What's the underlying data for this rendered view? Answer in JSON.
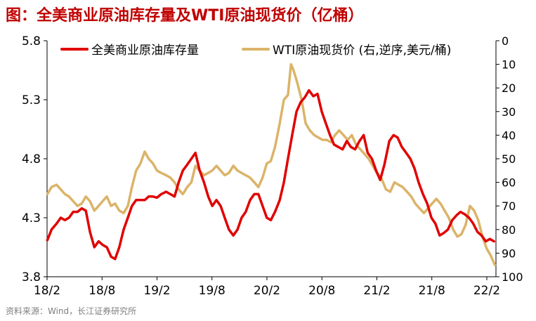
{
  "title": "图：全美商业原油库存量及WTI原油现货价（亿桶）",
  "source": "资料来源：Wind，长江证券研究所",
  "chart_data": {
    "type": "line",
    "x_ticks": [
      "18/2",
      "18/8",
      "19/2",
      "19/8",
      "20/2",
      "20/8",
      "21/2",
      "21/8",
      "22/2"
    ],
    "x_range": [
      "2018-02",
      "2022-03"
    ],
    "y_left": {
      "ticks": [
        "5.8",
        "5.3",
        "4.8",
        "4.3",
        "3.8"
      ],
      "range": [
        3.8,
        5.8
      ]
    },
    "y_right": {
      "ticks": [
        "0",
        "10",
        "20",
        "30",
        "40",
        "50",
        "60",
        "70",
        "80",
        "90",
        "100"
      ],
      "range": [
        0,
        100
      ],
      "inverted": true
    },
    "grid": false,
    "legend_position": "top",
    "series": [
      {
        "name": "全美商业原油库存量",
        "axis": "left",
        "color": "#e00000",
        "points": [
          [
            "2018-02-02",
            4.11
          ],
          [
            "2018-02-16",
            4.2
          ],
          [
            "2018-03-02",
            4.25
          ],
          [
            "2018-03-16",
            4.3
          ],
          [
            "2018-03-30",
            4.28
          ],
          [
            "2018-04-13",
            4.3
          ],
          [
            "2018-04-27",
            4.35
          ],
          [
            "2018-05-11",
            4.35
          ],
          [
            "2018-05-25",
            4.38
          ],
          [
            "2018-06-08",
            4.36
          ],
          [
            "2018-06-22",
            4.18
          ],
          [
            "2018-07-06",
            4.05
          ],
          [
            "2018-07-20",
            4.1
          ],
          [
            "2018-08-03",
            4.07
          ],
          [
            "2018-08-17",
            4.05
          ],
          [
            "2018-08-31",
            3.97
          ],
          [
            "2018-09-14",
            3.95
          ],
          [
            "2018-09-28",
            4.05
          ],
          [
            "2018-10-12",
            4.2
          ],
          [
            "2018-10-26",
            4.3
          ],
          [
            "2018-11-09",
            4.4
          ],
          [
            "2018-11-23",
            4.45
          ],
          [
            "2018-12-07",
            4.45
          ],
          [
            "2018-12-21",
            4.45
          ],
          [
            "2019-01-04",
            4.48
          ],
          [
            "2019-01-18",
            4.48
          ],
          [
            "2019-02-01",
            4.47
          ],
          [
            "2019-02-15",
            4.5
          ],
          [
            "2019-03-01",
            4.52
          ],
          [
            "2019-03-15",
            4.5
          ],
          [
            "2019-03-29",
            4.48
          ],
          [
            "2019-04-12",
            4.6
          ],
          [
            "2019-04-26",
            4.7
          ],
          [
            "2019-05-10",
            4.75
          ],
          [
            "2019-05-24",
            4.8
          ],
          [
            "2019-06-07",
            4.85
          ],
          [
            "2019-06-21",
            4.7
          ],
          [
            "2019-07-05",
            4.6
          ],
          [
            "2019-07-19",
            4.48
          ],
          [
            "2019-08-02",
            4.4
          ],
          [
            "2019-08-16",
            4.45
          ],
          [
            "2019-08-30",
            4.4
          ],
          [
            "2019-09-13",
            4.3
          ],
          [
            "2019-09-27",
            4.2
          ],
          [
            "2019-10-11",
            4.15
          ],
          [
            "2019-10-25",
            4.2
          ],
          [
            "2019-11-08",
            4.3
          ],
          [
            "2019-11-22",
            4.35
          ],
          [
            "2019-12-06",
            4.45
          ],
          [
            "2019-12-20",
            4.5
          ],
          [
            "2020-01-03",
            4.5
          ],
          [
            "2020-01-17",
            4.4
          ],
          [
            "2020-01-31",
            4.3
          ],
          [
            "2020-02-14",
            4.28
          ],
          [
            "2020-02-28",
            4.35
          ],
          [
            "2020-03-13",
            4.45
          ],
          [
            "2020-03-27",
            4.6
          ],
          [
            "2020-04-10",
            4.8
          ],
          [
            "2020-04-24",
            5.0
          ],
          [
            "2020-05-08",
            5.2
          ],
          [
            "2020-05-22",
            5.28
          ],
          [
            "2020-06-05",
            5.32
          ],
          [
            "2020-06-19",
            5.38
          ],
          [
            "2020-07-03",
            5.33
          ],
          [
            "2020-07-17",
            5.35
          ],
          [
            "2020-07-31",
            5.2
          ],
          [
            "2020-08-14",
            5.1
          ],
          [
            "2020-08-28",
            5.0
          ],
          [
            "2020-09-11",
            4.92
          ],
          [
            "2020-09-25",
            4.9
          ],
          [
            "2020-10-09",
            4.88
          ],
          [
            "2020-10-23",
            4.95
          ],
          [
            "2020-11-06",
            4.9
          ],
          [
            "2020-11-20",
            4.88
          ],
          [
            "2020-12-04",
            4.95
          ],
          [
            "2020-12-18",
            5.0
          ],
          [
            "2021-01-01",
            4.85
          ],
          [
            "2021-01-15",
            4.8
          ],
          [
            "2021-01-29",
            4.7
          ],
          [
            "2021-02-12",
            4.62
          ],
          [
            "2021-02-26",
            4.75
          ],
          [
            "2021-03-12",
            4.95
          ],
          [
            "2021-03-26",
            5.0
          ],
          [
            "2021-04-09",
            4.98
          ],
          [
            "2021-04-23",
            4.9
          ],
          [
            "2021-05-07",
            4.85
          ],
          [
            "2021-05-21",
            4.8
          ],
          [
            "2021-06-04",
            4.72
          ],
          [
            "2021-06-18",
            4.6
          ],
          [
            "2021-07-02",
            4.5
          ],
          [
            "2021-07-16",
            4.42
          ],
          [
            "2021-07-30",
            4.3
          ],
          [
            "2021-08-13",
            4.25
          ],
          [
            "2021-08-27",
            4.15
          ],
          [
            "2021-09-10",
            4.17
          ],
          [
            "2021-09-24",
            4.2
          ],
          [
            "2021-10-08",
            4.28
          ],
          [
            "2021-10-22",
            4.32
          ],
          [
            "2021-11-05",
            4.35
          ],
          [
            "2021-11-19",
            4.33
          ],
          [
            "2021-12-03",
            4.3
          ],
          [
            "2021-12-17",
            4.25
          ],
          [
            "2021-12-31",
            4.18
          ],
          [
            "2022-01-14",
            4.15
          ],
          [
            "2022-01-28",
            4.1
          ],
          [
            "2022-02-11",
            4.12
          ],
          [
            "2022-02-25",
            4.1
          ]
        ]
      },
      {
        "name": "WTI原油现货价 (右,逆序,美元/桶)",
        "axis": "right",
        "color": "#dbb469",
        "points": [
          [
            "2018-02-02",
            65
          ],
          [
            "2018-02-16",
            62
          ],
          [
            "2018-03-02",
            61
          ],
          [
            "2018-03-16",
            63
          ],
          [
            "2018-03-30",
            65
          ],
          [
            "2018-04-13",
            66
          ],
          [
            "2018-04-27",
            68
          ],
          [
            "2018-05-11",
            70
          ],
          [
            "2018-05-25",
            69
          ],
          [
            "2018-06-08",
            66
          ],
          [
            "2018-06-22",
            68
          ],
          [
            "2018-07-06",
            72
          ],
          [
            "2018-07-20",
            70
          ],
          [
            "2018-08-03",
            68
          ],
          [
            "2018-08-17",
            66
          ],
          [
            "2018-08-31",
            70
          ],
          [
            "2018-09-14",
            69
          ],
          [
            "2018-09-28",
            72
          ],
          [
            "2018-10-12",
            73
          ],
          [
            "2018-10-26",
            70
          ],
          [
            "2018-11-09",
            62
          ],
          [
            "2018-11-23",
            55
          ],
          [
            "2018-12-07",
            52
          ],
          [
            "2018-12-21",
            47
          ],
          [
            "2019-01-04",
            50
          ],
          [
            "2019-01-18",
            52
          ],
          [
            "2019-02-01",
            55
          ],
          [
            "2019-02-15",
            56
          ],
          [
            "2019-03-01",
            57
          ],
          [
            "2019-03-15",
            58
          ],
          [
            "2019-03-29",
            60
          ],
          [
            "2019-04-12",
            63
          ],
          [
            "2019-04-26",
            65
          ],
          [
            "2019-05-10",
            62
          ],
          [
            "2019-05-24",
            60
          ],
          [
            "2019-06-07",
            53
          ],
          [
            "2019-06-21",
            55
          ],
          [
            "2019-07-05",
            57
          ],
          [
            "2019-07-19",
            56
          ],
          [
            "2019-08-02",
            55
          ],
          [
            "2019-08-16",
            53
          ],
          [
            "2019-08-30",
            55
          ],
          [
            "2019-09-13",
            57
          ],
          [
            "2019-09-27",
            56
          ],
          [
            "2019-10-11",
            53
          ],
          [
            "2019-10-25",
            55
          ],
          [
            "2019-11-08",
            56
          ],
          [
            "2019-11-22",
            57
          ],
          [
            "2019-12-06",
            58
          ],
          [
            "2019-12-20",
            60
          ],
          [
            "2020-01-03",
            62
          ],
          [
            "2020-01-17",
            58
          ],
          [
            "2020-01-31",
            52
          ],
          [
            "2020-02-14",
            51
          ],
          [
            "2020-02-28",
            45
          ],
          [
            "2020-03-13",
            35
          ],
          [
            "2020-03-27",
            25
          ],
          [
            "2020-04-10",
            23
          ],
          [
            "2020-04-20",
            10
          ],
          [
            "2020-04-27",
            12
          ],
          [
            "2020-05-04",
            15
          ],
          [
            "2020-05-11",
            18
          ],
          [
            "2020-05-25",
            25
          ],
          [
            "2020-06-08",
            35
          ],
          [
            "2020-06-22",
            38
          ],
          [
            "2020-07-06",
            40
          ],
          [
            "2020-07-20",
            41
          ],
          [
            "2020-08-03",
            42
          ],
          [
            "2020-08-17",
            42
          ],
          [
            "2020-08-31",
            43
          ],
          [
            "2020-09-14",
            40
          ],
          [
            "2020-09-28",
            38
          ],
          [
            "2020-10-12",
            40
          ],
          [
            "2020-10-26",
            42
          ],
          [
            "2020-11-09",
            40
          ],
          [
            "2020-11-23",
            44
          ],
          [
            "2020-12-07",
            46
          ],
          [
            "2020-12-21",
            48
          ],
          [
            "2021-01-04",
            50
          ],
          [
            "2021-01-18",
            53
          ],
          [
            "2021-02-01",
            56
          ],
          [
            "2021-02-15",
            58
          ],
          [
            "2021-03-01",
            63
          ],
          [
            "2021-03-15",
            64
          ],
          [
            "2021-03-29",
            60
          ],
          [
            "2021-04-12",
            61
          ],
          [
            "2021-04-26",
            62
          ],
          [
            "2021-05-10",
            64
          ],
          [
            "2021-05-24",
            66
          ],
          [
            "2021-06-07",
            69
          ],
          [
            "2021-06-21",
            71
          ],
          [
            "2021-07-05",
            73
          ],
          [
            "2021-07-19",
            71
          ],
          [
            "2021-08-02",
            69
          ],
          [
            "2021-08-16",
            67
          ],
          [
            "2021-08-30",
            69
          ],
          [
            "2021-09-13",
            72
          ],
          [
            "2021-09-27",
            75
          ],
          [
            "2021-10-11",
            80
          ],
          [
            "2021-10-25",
            83
          ],
          [
            "2021-11-08",
            82
          ],
          [
            "2021-11-22",
            78
          ],
          [
            "2021-12-06",
            70
          ],
          [
            "2021-12-20",
            72
          ],
          [
            "2022-01-03",
            76
          ],
          [
            "2022-01-17",
            83
          ],
          [
            "2022-01-31",
            88
          ],
          [
            "2022-02-14",
            91
          ],
          [
            "2022-02-28",
            95
          ]
        ]
      }
    ]
  }
}
